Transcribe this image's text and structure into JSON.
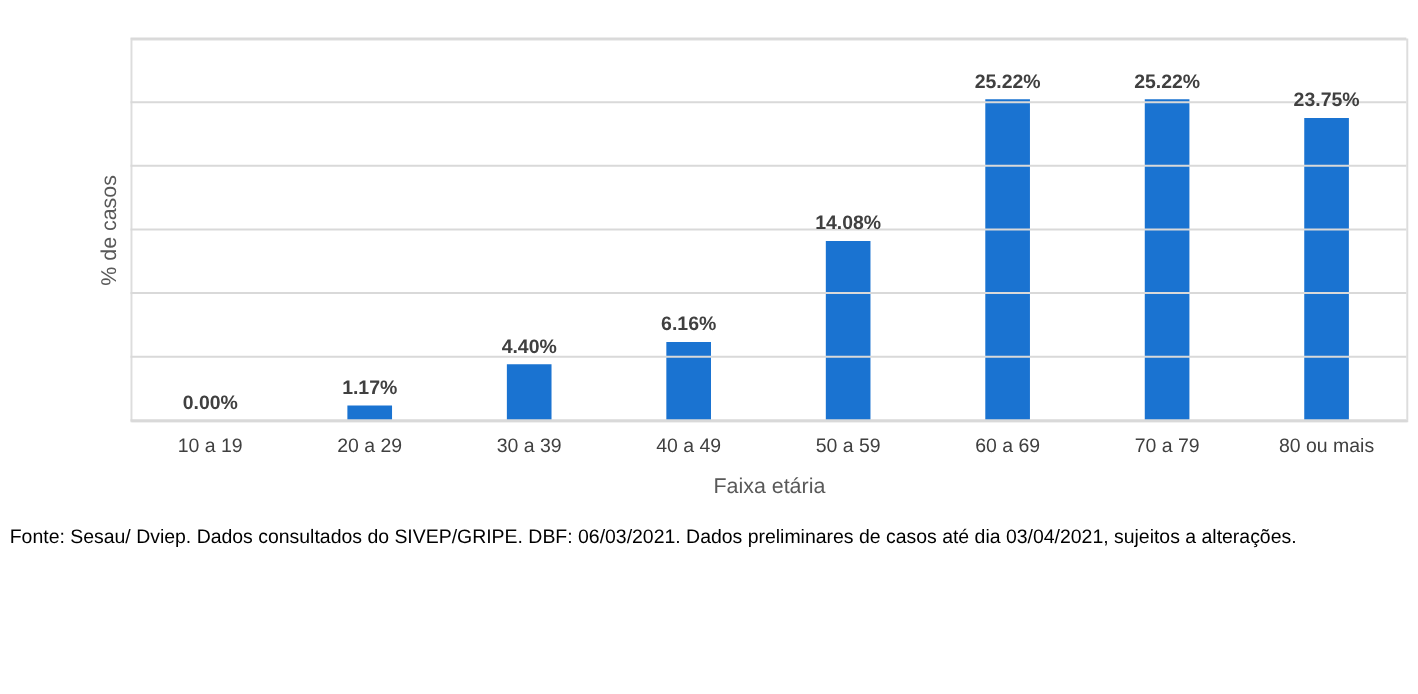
{
  "chart_data": {
    "type": "bar",
    "categories": [
      "10 a 19",
      "20 a 29",
      "30 a 39",
      "40 a 49",
      "50 a 59",
      "60 a 69",
      "70 a 79",
      "80 ou mais"
    ],
    "values": [
      0.0,
      1.17,
      4.4,
      6.16,
      14.08,
      25.22,
      25.22,
      23.75
    ],
    "value_labels": [
      "0.00%",
      "1.17%",
      "4.40%",
      "6.16%",
      "14.08%",
      "25.22%",
      "25.22%",
      "23.75%"
    ],
    "color": "#1a73d1",
    "xlabel": "Faixa etária",
    "ylabel": "% de casos",
    "ylim": [
      0,
      30
    ],
    "yticks": [
      {
        "value": 0,
        "label": null
      },
      {
        "value": 5,
        "label": null
      },
      {
        "value": 10,
        "label": null
      },
      {
        "value": 15,
        "label": null
      },
      {
        "value": 20,
        "label": null
      },
      {
        "value": 25,
        "label": null
      },
      {
        "value": 30,
        "label": null
      }
    ],
    "grid": "y",
    "tick_labels": "x",
    "annotations": [
      "Fonte: Sesau/ Dviep. Dados consultados do SIVEP/GRIPE. DBF: 06/03/2021. Dados preliminares de casos até dia 03/04/2021, sujeitos a alterações."
    ]
  }
}
